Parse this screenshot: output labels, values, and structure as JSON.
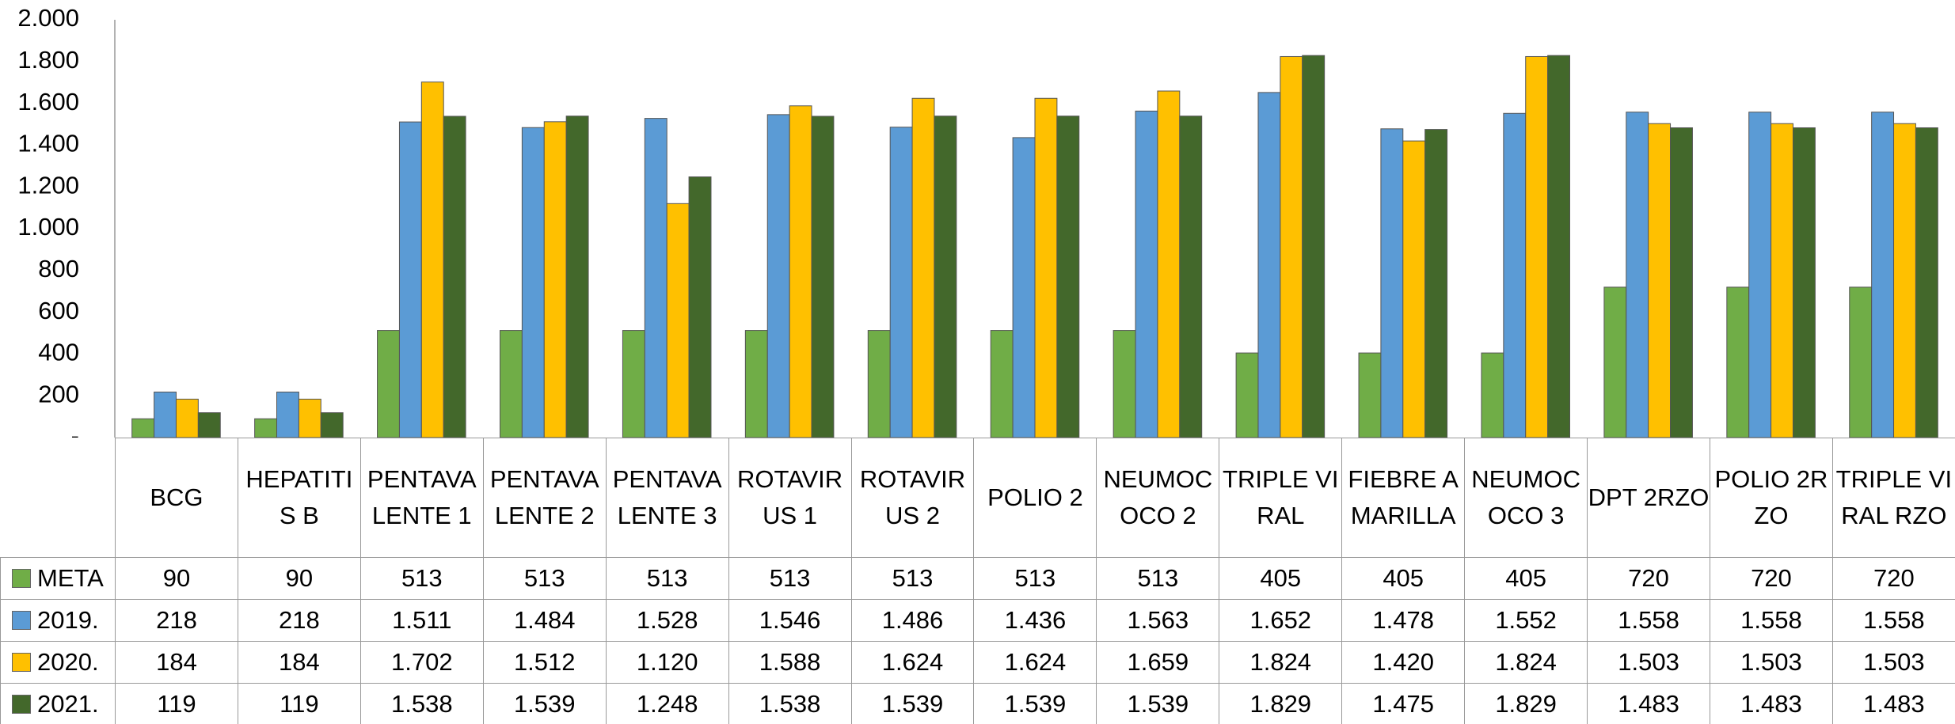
{
  "chart_data": {
    "type": "bar",
    "categories": [
      "BCG",
      "HEPATITIS B",
      "PENTAVALENTE 1",
      "PENTAVALENTE 2",
      "PENTAVALENTE 3",
      "ROTAVIRUS 1",
      "ROTAVIRUS 2",
      "POLIO 2",
      "NEUMOCOCO 2",
      "TRIPLE VIRAL",
      "FIEBRE AMARILLA",
      "NEUMOCOCO 3",
      "DPT 2RZO",
      "POLIO 2RZO",
      "TRIPLE VIRAL RZO"
    ],
    "series": [
      {
        "name": "META",
        "color": "#70ad47",
        "values": [
          90,
          90,
          513,
          513,
          513,
          513,
          513,
          513,
          513,
          405,
          405,
          405,
          720,
          720,
          720
        ],
        "value_labels": [
          "90",
          "90",
          "513",
          "513",
          "513",
          "513",
          "513",
          "513",
          "513",
          "405",
          "405",
          "405",
          "720",
          "720",
          "720"
        ]
      },
      {
        "name": "2019.",
        "color": "#5b9bd5",
        "values": [
          218,
          218,
          1511,
          1484,
          1528,
          1546,
          1486,
          1436,
          1563,
          1652,
          1478,
          1552,
          1558,
          1558,
          1558
        ],
        "value_labels": [
          "218",
          "218",
          "1.511",
          "1.484",
          "1.528",
          "1.546",
          "1.486",
          "1.436",
          "1.563",
          "1.652",
          "1.478",
          "1.552",
          "1.558",
          "1.558",
          "1.558"
        ]
      },
      {
        "name": "2020.",
        "color": "#ffc000",
        "values": [
          184,
          184,
          1702,
          1512,
          1120,
          1588,
          1624,
          1624,
          1659,
          1824,
          1420,
          1824,
          1503,
          1503,
          1503
        ],
        "value_labels": [
          "184",
          "184",
          "1.702",
          "1.512",
          "1.120",
          "1.588",
          "1.624",
          "1.624",
          "1.659",
          "1.824",
          "1.420",
          "1.824",
          "1.503",
          "1.503",
          "1.503"
        ]
      },
      {
        "name": "2021.",
        "color": "#43682b",
        "values": [
          119,
          119,
          1538,
          1539,
          1248,
          1538,
          1539,
          1539,
          1539,
          1829,
          1475,
          1829,
          1483,
          1483,
          1483
        ],
        "value_labels": [
          "119",
          "119",
          "1.538",
          "1.539",
          "1.248",
          "1.538",
          "1.539",
          "1.539",
          "1.539",
          "1.829",
          "1.475",
          "1.829",
          "1.483",
          "1.483",
          "1.483"
        ]
      }
    ],
    "ylim": [
      0,
      2000
    ],
    "yticks": [
      {
        "value": 0,
        "label": "-"
      },
      200,
      400,
      600,
      800,
      {
        "value": 1000,
        "label": "1.000"
      },
      {
        "value": 1200,
        "label": "1.200"
      },
      {
        "value": 1400,
        "label": "1.400"
      },
      {
        "value": 1600,
        "label": "1.600"
      },
      {
        "value": 1800,
        "label": "1.800"
      },
      {
        "value": 2000,
        "label": "2.000"
      }
    ],
    "grid": false
  }
}
